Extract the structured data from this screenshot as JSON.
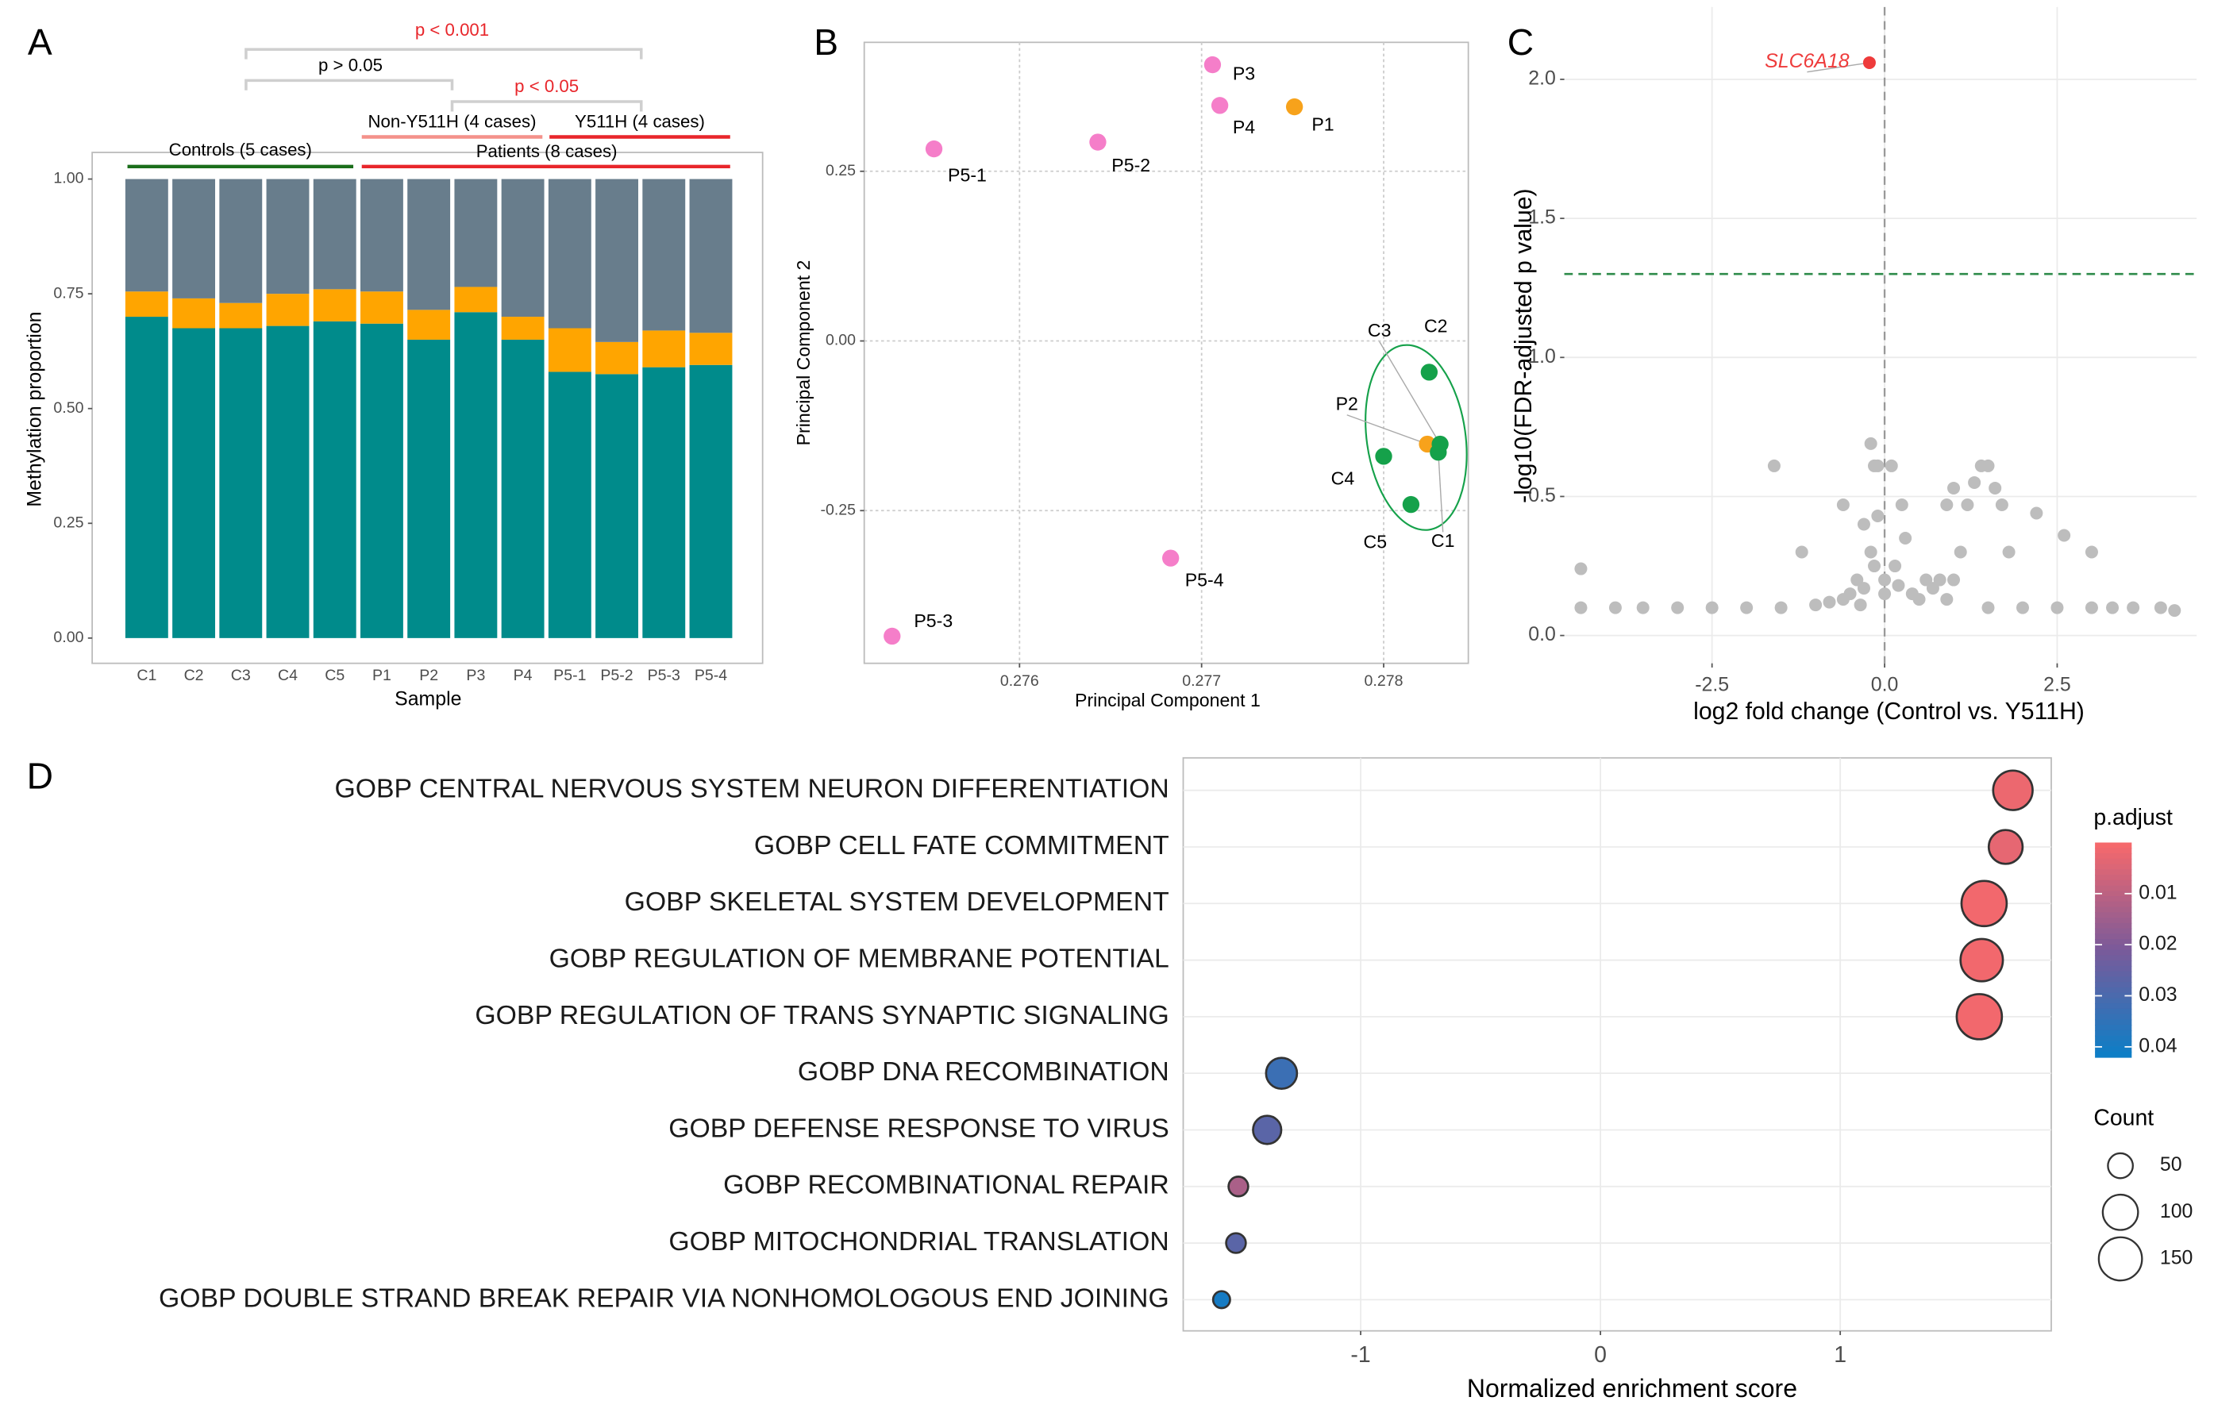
{
  "chart_data": [
    {
      "type": "bar",
      "stacked": true,
      "panel_label": "A",
      "xlabel": "Sample",
      "ylabel": "Methylation proportion",
      "categories": [
        "C1",
        "C2",
        "C3",
        "C4",
        "C5",
        "P1",
        "P2",
        "P3",
        "P4",
        "P5-1",
        "P5-2",
        "P5-3",
        "P5-4"
      ],
      "series": [
        {
          "color": "#008b8b",
          "values": [
            0.7,
            0.675,
            0.675,
            0.68,
            0.69,
            0.685,
            0.65,
            0.71,
            0.65,
            0.58,
            0.575,
            0.59,
            0.595
          ]
        },
        {
          "color": "#ffa500",
          "values": [
            0.055,
            0.065,
            0.055,
            0.07,
            0.07,
            0.07,
            0.065,
            0.055,
            0.05,
            0.095,
            0.07,
            0.08,
            0.07
          ]
        },
        {
          "color": "#687d8c",
          "values": [
            0.245,
            0.26,
            0.27,
            0.25,
            0.24,
            0.245,
            0.285,
            0.235,
            0.3,
            0.325,
            0.355,
            0.33,
            0.335
          ]
        }
      ],
      "ylim": [
        -0.055,
        1.058
      ],
      "yticks": [
        {
          "value": 0,
          "label": "0.00"
        },
        0.25,
        {
          "value": 0.5,
          "label": "0.50"
        },
        0.75,
        {
          "value": 1,
          "label": "1.00"
        }
      ],
      "grid": false,
      "annotations": [
        {
          "text": "p < 0.001",
          "color": "#e8262b"
        },
        {
          "text": "p > 0.05",
          "color": "#000000"
        },
        {
          "text": "p < 0.05",
          "color": "#e8262b"
        },
        {
          "text": "Non-Y511H (4 cases)",
          "color": "#f4918a"
        },
        {
          "text": "Y511H (4 cases)",
          "color": "#e8262b"
        },
        {
          "text": "Controls (5 cases)",
          "color": "#1b6e1b"
        },
        {
          "text": "Patients (8 cases)",
          "color": "#e8262b"
        }
      ]
    },
    {
      "type": "scatter",
      "panel_label": "B",
      "xlabel": "Principal Component 1",
      "ylabel": "Principal Component 2",
      "series": [
        {
          "color": "#f57ec9",
          "labels": [
            "P5-1",
            "P5-2",
            "P3",
            "P4",
            "P5-4",
            "P5-3"
          ],
          "x": [
            0.27553,
            0.27643,
            0.27706,
            0.2771,
            0.27683,
            0.2753
          ],
          "values": [
            0.283,
            0.293,
            0.407,
            0.347,
            -0.32,
            -0.435
          ]
        },
        {
          "color": "#f7a21b",
          "labels": [
            "P1",
            "P2"
          ],
          "x": [
            0.27751,
            0.27824
          ],
          "values": [
            0.345,
            -0.152
          ]
        },
        {
          "color": "#15a14a",
          "labels": [
            "C1",
            "C2",
            "C3",
            "C4",
            "C5"
          ],
          "x": [
            0.2783,
            0.27825,
            0.27831,
            0.278,
            0.27815
          ],
          "values": [
            -0.164,
            -0.046,
            -0.152,
            -0.17,
            -0.241
          ]
        }
      ],
      "xlim": [
        0.275147,
        0.278465
      ],
      "ylim": [
        -0.475,
        0.44
      ],
      "xticks": [
        0.276,
        0.277,
        0.278
      ],
      "yticks": [
        -0.25,
        {
          "value": 0,
          "label": "0.00"
        },
        0.25
      ],
      "grid": true
    },
    {
      "type": "scatter",
      "panel_label": "C",
      "xlabel": "log2 fold change (Control vs. Y511H)",
      "ylabel": "-log10(FDR-adjusted p value)",
      "series": [
        {
          "color": "#bdbdbd",
          "x": [
            -4.4,
            -4.4,
            -3.9,
            -3.5,
            -3.0,
            -2.5,
            -2.0,
            -1.6,
            -1.5,
            -1.2,
            -1.0,
            -0.8,
            -0.6,
            -0.6,
            -0.5,
            -0.4,
            -0.35,
            -0.3,
            -0.3,
            -0.2,
            -0.2,
            -0.15,
            -0.15,
            -0.1,
            -0.1,
            0.0,
            0.0,
            0.1,
            0.15,
            0.2,
            0.25,
            0.3,
            0.4,
            0.5,
            0.6,
            0.7,
            0.8,
            0.9,
            0.9,
            1.0,
            1.0,
            1.1,
            1.2,
            1.3,
            1.4,
            1.5,
            1.5,
            1.6,
            1.7,
            1.8,
            2.0,
            2.2,
            2.5,
            2.6,
            3.0,
            3.0,
            3.3,
            3.6,
            4.0,
            4.2
          ],
          "values": [
            0.24,
            0.1,
            0.1,
            0.1,
            0.1,
            0.1,
            0.1,
            0.61,
            0.1,
            0.3,
            0.11,
            0.12,
            0.47,
            0.13,
            0.15,
            0.2,
            0.11,
            0.4,
            0.17,
            0.69,
            0.3,
            0.61,
            0.25,
            0.43,
            0.61,
            0.15,
            0.2,
            0.61,
            0.25,
            0.18,
            0.47,
            0.35,
            0.15,
            0.13,
            0.2,
            0.17,
            0.2,
            0.47,
            0.13,
            0.53,
            0.2,
            0.3,
            0.47,
            0.55,
            0.61,
            0.61,
            0.1,
            0.53,
            0.47,
            0.3,
            0.1,
            0.44,
            0.1,
            0.36,
            0.3,
            0.1,
            0.1,
            0.1,
            0.1,
            0.09
          ]
        },
        {
          "color": "#ee3b3b",
          "labels": [
            "SLC6A18"
          ],
          "x": [
            -0.22
          ],
          "values": [
            2.06
          ]
        }
      ],
      "xlim": [
        -4.64,
        4.52
      ],
      "ylim": [
        -0.1,
        2.26
      ],
      "xticks": [
        -2.5,
        {
          "value": 0,
          "label": "0.0"
        },
        2.5
      ],
      "yticks": [
        {
          "value": 0,
          "label": "0.0"
        },
        0.5,
        {
          "value": 1,
          "label": "1.0"
        },
        1.5,
        {
          "value": 2,
          "label": "2.0"
        }
      ],
      "grid": true,
      "hline": 1.3,
      "hline_color": "#2e8b4a",
      "vline": 0
    },
    {
      "type": "dot",
      "panel_label": "D",
      "xlabel": "Normalized enrichment score",
      "categories": [
        "GOBP CENTRAL NERVOUS SYSTEM NEURON DIFFERENTIATION",
        "GOBP CELL FATE COMMITMENT",
        "GOBP SKELETAL SYSTEM DEVELOPMENT",
        "GOBP REGULATION OF MEMBRANE POTENTIAL",
        "GOBP REGULATION OF TRANS SYNAPTIC SIGNALING",
        "GOBP DNA RECOMBINATION",
        "GOBP DEFENSE RESPONSE TO VIRUS",
        "GOBP RECOMBINATIONAL REPAIR",
        "GOBP MITOCHONDRIAL TRANSLATION",
        "GOBP DOUBLE STRAND BREAK REPAIR VIA NONHOMOLOGOUS END JOINING"
      ],
      "values": [
        1.72,
        1.69,
        1.6,
        1.59,
        1.58,
        -1.33,
        -1.39,
        -1.51,
        -1.52,
        -1.58
      ],
      "sizes": [
        125,
        92,
        164,
        144,
        164,
        77,
        64,
        31,
        31,
        23
      ],
      "p_adjust": [
        0.002,
        0.003,
        0.001,
        0.001,
        0.001,
        0.033,
        0.027,
        0.013,
        0.027,
        0.04
      ],
      "xlim": [
        -1.74,
        1.88
      ],
      "xticks": [
        -1,
        0,
        1
      ],
      "grid": true,
      "color_title": "p.adjust",
      "colors": [
        "#f8696b",
        "#7a5a9a",
        "#0b7fc7"
      ],
      "colorlim": [
        0,
        0.042
      ],
      "colorticks": [
        0.01,
        0.02,
        0.03,
        0.04
      ],
      "size_title": "Count",
      "size_ticks": [
        50,
        100,
        150
      ]
    }
  ]
}
